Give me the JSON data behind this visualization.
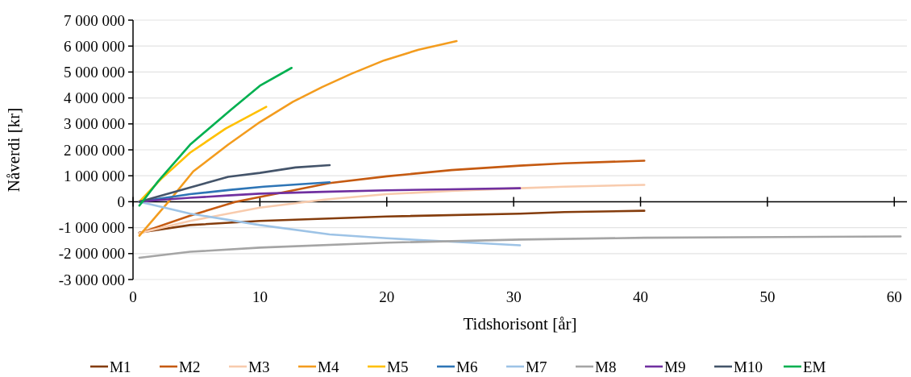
{
  "chart_data": {
    "type": "line",
    "xlabel": "Tidshorisont [år]",
    "ylabel": "Nåverdi [kr]",
    "xlim": [
      0,
      61
    ],
    "xticks": [
      0,
      10,
      20,
      30,
      40,
      50,
      60
    ],
    "ylim": [
      -3000000,
      7000000
    ],
    "yticks": [
      {
        "value": -3000000,
        "label": "-3 000 000"
      },
      {
        "value": -2000000,
        "label": "-2 000 000"
      },
      {
        "value": -1000000,
        "label": "-1 000 000"
      },
      0,
      {
        "value": 1000000,
        "label": "1 000 000"
      },
      {
        "value": 2000000,
        "label": "2 000 000"
      },
      {
        "value": 3000000,
        "label": "3 000 000"
      },
      {
        "value": 4000000,
        "label": "4 000 000"
      },
      {
        "value": 5000000,
        "label": "5 000 000"
      },
      {
        "value": 6000000,
        "label": "6 000 000"
      },
      {
        "value": 7000000,
        "label": "7 000 000"
      }
    ],
    "grid": "y",
    "legend": "bottom",
    "marker": "none",
    "line_style": "solid",
    "series": [
      {
        "name": "M1",
        "color": "#843c0c",
        "x": [
          0.5,
          4.5,
          10,
          20,
          30.5,
          34,
          40.3
        ],
        "values": [
          -1190000,
          -900000,
          -740000,
          -570000,
          -460000,
          -400000,
          -350000
        ]
      },
      {
        "name": "M2",
        "color": "#c55a11",
        "x": [
          0.5,
          4.5,
          8.1,
          15.5,
          20,
          25.1,
          30.5,
          34,
          40.3
        ],
        "values": [
          -1210000,
          -540000,
          0,
          720000,
          980000,
          1220000,
          1390000,
          1480000,
          1580000
        ]
      },
      {
        "name": "M3",
        "color": "#f8cbad",
        "x": [
          0.5,
          4.5,
          10,
          15.1,
          20,
          25.1,
          30.5,
          34,
          40.3
        ],
        "values": [
          -1210000,
          -740000,
          -230000,
          80000,
          290000,
          420000,
          520000,
          580000,
          650000
        ]
      },
      {
        "name": "M4",
        "color": "#f39c1e",
        "x": [
          0.5,
          2.8,
          4.75,
          7.5,
          10,
          12.6,
          14.9,
          17.2,
          19.8,
          22.5,
          25.5
        ],
        "values": [
          -1310000,
          0,
          1170000,
          2200000,
          3070000,
          3850000,
          4420000,
          4930000,
          5450000,
          5860000,
          6190000
        ]
      },
      {
        "name": "M5",
        "color": "#ffc000",
        "x": [
          0.5,
          2.2,
          4.5,
          7.3,
          10.5
        ],
        "values": [
          0,
          870000,
          1890000,
          2820000,
          3660000
        ]
      },
      {
        "name": "M6",
        "color": "#2e75b6",
        "x": [
          0.5,
          4.5,
          7.7,
          10.3,
          15.5
        ],
        "values": [
          0,
          290000,
          460000,
          580000,
          750000
        ]
      },
      {
        "name": "M7",
        "color": "#9dc3e6",
        "x": [
          0.5,
          4.5,
          10,
          15.5,
          20,
          25.1,
          30.5
        ],
        "values": [
          0,
          -460000,
          -900000,
          -1260000,
          -1410000,
          -1540000,
          -1680000
        ]
      },
      {
        "name": "M8",
        "color": "#a5a5a5",
        "x": [
          0.5,
          4.5,
          10,
          20,
          30.5,
          40.3,
          51,
          60.5
        ],
        "values": [
          -2160000,
          -1930000,
          -1770000,
          -1580000,
          -1460000,
          -1390000,
          -1360000,
          -1340000
        ]
      },
      {
        "name": "M9",
        "color": "#7030a0",
        "x": [
          0.5,
          2.5,
          4.5,
          7.5,
          10,
          15,
          20,
          25,
          30.5
        ],
        "values": [
          0,
          80000,
          150000,
          240000,
          310000,
          380000,
          440000,
          480000,
          520000
        ]
      },
      {
        "name": "M10",
        "color": "#44546a",
        "x": [
          0.5,
          4.5,
          7.5,
          10,
          12.8,
          15.5
        ],
        "values": [
          0,
          550000,
          960000,
          1110000,
          1320000,
          1410000
        ]
      },
      {
        "name": "EM",
        "color": "#00b050",
        "x": [
          0.5,
          2,
          4.5,
          7.7,
          10,
          12.5
        ],
        "values": [
          -150000,
          800000,
          2200000,
          3540000,
          4470000,
          5160000
        ]
      }
    ]
  }
}
